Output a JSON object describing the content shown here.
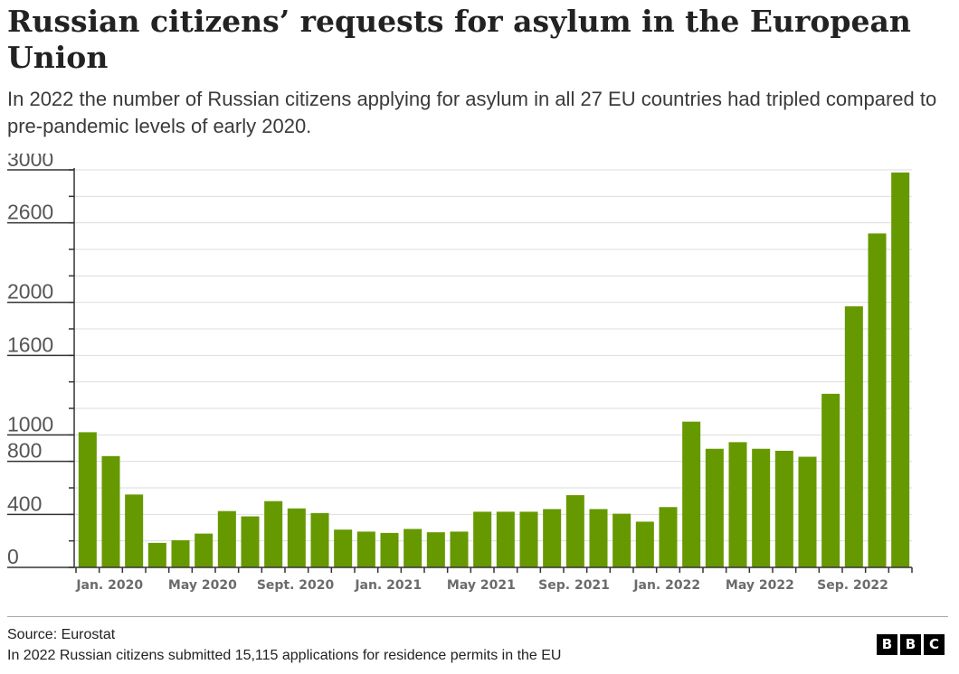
{
  "title": "Russian citizens’ requests for asylum in the European Union",
  "subtitle": "In 2022 the number of Russian citizens applying for asylum in all 27 EU countries had tripled compared to pre-pandemic levels of early 2020.",
  "footer": {
    "source": "Source: Eurostat",
    "note": "In 2022 Russian citizens submitted 15,115 applications for residence permits in the EU"
  },
  "logo": {
    "letters": [
      "B",
      "B",
      "C"
    ]
  },
  "colors": {
    "bar": "#669900",
    "grid": "#dddddd",
    "axis": "#333333"
  },
  "chart_data": {
    "type": "bar",
    "categories": [
      "Jan. 2020",
      "Feb. 2020",
      "Mar. 2020",
      "Apr. 2020",
      "May 2020",
      "Jun. 2020",
      "Jul. 2020",
      "Aug. 2020",
      "Sept. 2020",
      "Oct. 2020",
      "Nov. 2020",
      "Dec. 2020",
      "Jan. 2021",
      "Feb. 2021",
      "Mar. 2021",
      "Apr. 2021",
      "May 2021",
      "Jun. 2021",
      "Jul. 2021",
      "Aug. 2021",
      "Sep. 2021",
      "Oct. 2021",
      "Nov. 2021",
      "Dec. 2021",
      "Jan. 2022",
      "Feb. 2022",
      "Mar. 2022",
      "Apr. 2022",
      "May 2022",
      "Jun. 2022",
      "Jul. 2022",
      "Aug. 2022",
      "Sep. 2022",
      "Oct. 2022",
      "Nov. 2022",
      "Dec. 2022"
    ],
    "values": [
      1020,
      840,
      550,
      185,
      205,
      255,
      425,
      385,
      500,
      445,
      410,
      285,
      270,
      260,
      290,
      265,
      270,
      420,
      420,
      420,
      440,
      545,
      440,
      405,
      345,
      455,
      1100,
      895,
      945,
      895,
      880,
      835,
      1310,
      1970,
      2520,
      2980
    ],
    "tick_labels": [
      "Jan. 2020",
      "May 2020",
      "Sept. 2020",
      "Jan. 2021",
      "May 2021",
      "Sep. 2021",
      "Jan. 2022",
      "May 2022",
      "Sep. 2022"
    ],
    "tick_label_indices": [
      0,
      4,
      8,
      12,
      16,
      20,
      24,
      28,
      32
    ],
    "y_ticks": [
      0,
      400,
      800,
      1000,
      1600,
      2000,
      2600,
      3000
    ],
    "ylim": [
      0,
      3000
    ],
    "grid": true,
    "legend": "none"
  }
}
